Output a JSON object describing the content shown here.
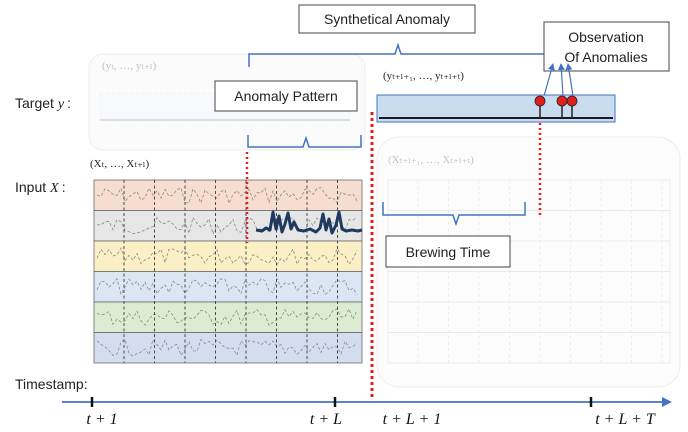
{
  "labels": {
    "synthetical_anomaly": "Synthetical Anomaly",
    "observation_line1": "Observation",
    "observation_line2": "Of Anomalies",
    "anomaly_pattern": "Anomaly Pattern",
    "brewing_time": "Brewing Time",
    "target_y": "Target",
    "target_y_symbol": "y",
    "target_y_colon": ":",
    "input_x": "Input",
    "input_x_symbol": "X",
    "input_x_colon": ":",
    "timestamp": "Timestamp:"
  },
  "sequences": {
    "target_past": "(yₜ, …, yₜ₊ₗ)",
    "target_future": "(yₜ₊ₗ₊₁, …, yₜ₊ₗ₊ₜ)",
    "input_past": "(Xₜ, …, Xₜ₊ₗ)",
    "input_future": "(Xₜ₊ₗ₊₁, …, Xₜ₊ₗ₊ₜ)"
  },
  "timeline_ticks": [
    "t + 1",
    "t + L",
    "t + L + 1",
    "t + L + T"
  ],
  "input_band_colors": [
    "#f6ddd0",
    "#e6e6e6",
    "#fbefc6",
    "#dbe6f4",
    "#dcecd2",
    "#d4ddf0"
  ],
  "colors": {
    "accent_blue": "#4472c4",
    "red_dotted": "#e02020",
    "observation_marker": "#e02020",
    "target_future_fill": "#c9dbef",
    "anomaly_signal": "#1f3a5f"
  }
}
